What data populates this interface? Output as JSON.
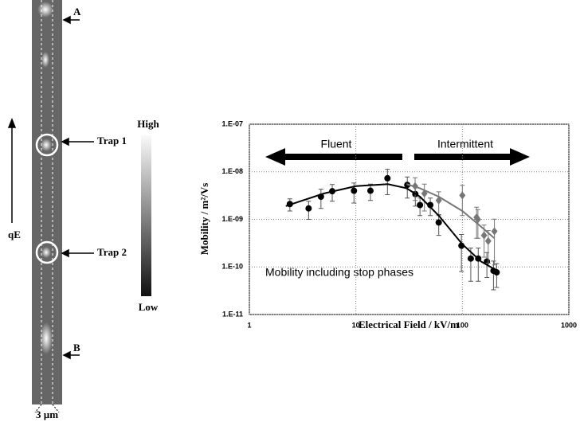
{
  "image": {
    "top_marker": "A",
    "trap1": "Trap 1",
    "trap2": "Trap 2",
    "bottom_marker": "B",
    "force": "qE",
    "scale": "3 µm",
    "colorbar_high": "High",
    "colorbar_low": "Low"
  },
  "chart_data": {
    "type": "scatter",
    "xlabel": "Electrical Field / kV/m",
    "ylabel": "Mobility / m²/Vs",
    "log_x": true,
    "log_y": true,
    "grid": true,
    "xlim": [
      1,
      1000
    ],
    "xticks": [
      1,
      10,
      100,
      1000
    ],
    "ylim": [
      1e-11,
      1e-07
    ],
    "yticks": [
      {
        "value": 1e-11,
        "label": "1.E-11"
      },
      {
        "value": 1e-10,
        "label": "1.E-10"
      },
      {
        "value": 1e-09,
        "label": "1.E-09"
      },
      {
        "value": 1e-08,
        "label": "1.E-08"
      },
      {
        "value": 1e-07,
        "label": "1.E-07"
      }
    ],
    "annotations": [
      "Fluent",
      "Intermittent",
      "Mobility including stop phases"
    ],
    "series": [
      {
        "mode": "markers",
        "marker": "circle",
        "color": "#000000",
        "x": [
          2.4,
          3.6,
          4.7,
          6.0,
          9.6,
          13.7,
          19.8,
          30.4,
          36.2,
          40,
          50,
          60,
          98,
          120,
          141,
          170,
          196,
          210
        ],
        "values": [
          2.1e-09,
          1.7e-09,
          3e-09,
          3.9e-09,
          4e-09,
          4e-09,
          7.3e-09,
          5.3e-09,
          3.4e-09,
          2e-09,
          2e-09,
          8.6e-10,
          2.8e-10,
          1.5e-10,
          1.5e-10,
          1.3e-10,
          8.3e-11,
          7.7e-11
        ],
        "errors": [
          6e-10,
          7e-10,
          1.3e-09,
          1.5e-09,
          1.8e-09,
          1.5e-09,
          4e-09,
          2.5e-09,
          1.5e-09,
          8e-10,
          8e-10,
          4e-10,
          2e-10,
          1e-10,
          1e-10,
          7e-11,
          5e-11,
          4e-11
        ]
      },
      {
        "mode": "markers",
        "marker": "diamond",
        "color": "#777777",
        "x": [
          36,
          44,
          60,
          100,
          136,
          140,
          160,
          175,
          200
        ],
        "values": [
          5e-09,
          3.5e-09,
          2.5e-09,
          3.2e-09,
          1.1e-09,
          1e-09,
          4.6e-10,
          3.5e-10,
          5.6e-10
        ],
        "errors": [
          2.5e-09,
          2e-09,
          1.3e-09,
          2e-09,
          7e-10,
          6e-10,
          3e-10,
          2.3e-10,
          4.5e-10
        ]
      },
      {
        "mode": "line",
        "color": "#000000",
        "x": [
          2.2,
          3,
          5,
          10,
          20,
          30,
          40,
          60,
          100,
          150,
          200
        ],
        "values": [
          1.9e-09,
          2.4e-09,
          3.5e-09,
          5e-09,
          5.5e-09,
          4.5e-09,
          3e-09,
          1.2e-09,
          3e-10,
          1.3e-10,
          9e-11
        ]
      },
      {
        "mode": "line",
        "color": "#777777",
        "x": [
          30,
          40,
          60,
          100,
          150,
          200
        ],
        "values": [
          5.5e-09,
          4.5e-09,
          3e-09,
          1.5e-09,
          7e-10,
          4e-10
        ]
      }
    ]
  }
}
